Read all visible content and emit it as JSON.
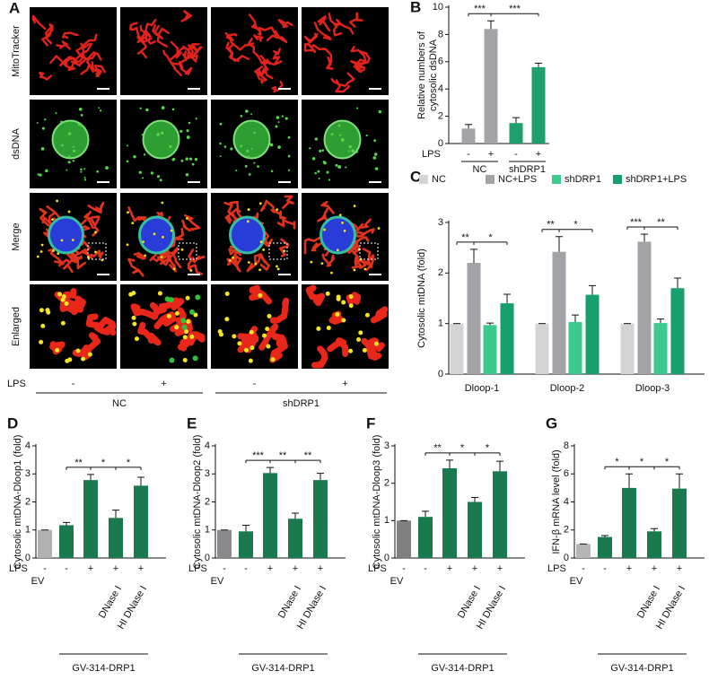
{
  "panel_a": {
    "panel": "A",
    "row_labels": [
      "MitoTracker",
      "dsDNA",
      "Merge",
      "Enlarged"
    ],
    "x_row_label": "LPS",
    "x_row": [
      "-",
      "+",
      "-",
      "+"
    ],
    "groups": [
      "NC",
      "shDRP1"
    ]
  },
  "chart_data": [
    {
      "type": "bar",
      "panel": "B",
      "y_label": [
        "Relative numbers of",
        "cytosolic dsDNA"
      ],
      "x_row_label": "LPS",
      "x_row": [
        "-",
        "+",
        "-",
        "+"
      ],
      "groups": [
        "NC",
        "shDRP1"
      ],
      "values": [
        1.1,
        8.4,
        1.5,
        5.6
      ],
      "errors": [
        0.3,
        0.6,
        0.4,
        0.3
      ],
      "colors": [
        "#a4a4a8",
        "#a4a4a8",
        "#1e9f6b",
        "#1e9f6b"
      ],
      "ylim": [
        0,
        10
      ],
      "yticks": [
        0,
        2,
        4,
        6,
        8,
        10
      ],
      "annotations": [
        "***",
        "***"
      ]
    },
    {
      "type": "grouped_bar",
      "panel": "C",
      "y_label": "Cytosolic mtDNA (fold)",
      "categories": [
        "Dloop-1",
        "Dloop-2",
        "Dloop-3"
      ],
      "series": [
        {
          "name": "NC",
          "color": "#d4d4d4",
          "values": [
            1,
            1,
            1
          ],
          "errors": [
            0,
            0,
            0
          ]
        },
        {
          "name": "NC+LPS",
          "color": "#a3a3a7",
          "values": [
            2.2,
            2.42,
            2.62
          ],
          "errors": [
            0.27,
            0.3,
            0.15
          ]
        },
        {
          "name": "shDRP1",
          "color": "#3ccb8c",
          "values": [
            0.97,
            1.03,
            1.01
          ],
          "errors": [
            0.04,
            0.14,
            0.08
          ]
        },
        {
          "name": "shDRP1+LPS",
          "color": "#17a06b",
          "values": [
            1.4,
            1.57,
            1.7
          ],
          "errors": [
            0.18,
            0.18,
            0.2
          ]
        }
      ],
      "ylim": [
        0,
        3
      ],
      "yticks": [
        0,
        1,
        2,
        3
      ],
      "annotations": [
        [
          "**",
          "*"
        ],
        [
          "**",
          "*"
        ],
        [
          "***",
          "**"
        ]
      ]
    },
    {
      "type": "bar",
      "panel": "D",
      "y_label": "Cytosolic mtDNA-Dloop1 (fold)",
      "x_row_label": "LPS",
      "x_row": [
        "-",
        "-",
        "+",
        "+",
        "+"
      ],
      "categories": [
        "EV",
        null,
        null,
        "DNase I",
        "HI DNase I"
      ],
      "group_label": "GV-314-DRP1",
      "values": [
        1,
        1.17,
        2.78,
        1.43,
        2.58
      ],
      "errors": [
        0,
        0.1,
        0.2,
        0.28,
        0.3
      ],
      "colors": [
        "#b0b0b3",
        "#1b7a4d",
        "#1b7a4d",
        "#1b7a4d",
        "#1b7a4d"
      ],
      "ylim": [
        0,
        4
      ],
      "yticks": [
        0,
        1,
        2,
        3,
        4
      ],
      "annotations": [
        "**",
        "*",
        "*"
      ]
    },
    {
      "type": "bar",
      "panel": "E",
      "y_label": "Cytosolic mtDNA-Dloop2 (fold)",
      "x_row_label": "LPS",
      "x_row": [
        "-",
        "-",
        "+",
        "+",
        "+"
      ],
      "categories": [
        "EV",
        null,
        null,
        "DNase I",
        "HI DNase I"
      ],
      "group_label": "GV-314-DRP1",
      "values": [
        1,
        0.95,
        3.03,
        1.4,
        2.78
      ],
      "errors": [
        0,
        0.22,
        0.2,
        0.2,
        0.24
      ],
      "colors": [
        "#8a8a8c",
        "#1b7a4d",
        "#1b7a4d",
        "#1b7a4d",
        "#1b7a4d"
      ],
      "ylim": [
        0,
        4
      ],
      "yticks": [
        0,
        1,
        2,
        3,
        4
      ],
      "annotations": [
        "***",
        "**",
        "**"
      ]
    },
    {
      "type": "bar",
      "panel": "F",
      "y_label": "Cytosolic mtDNA-Dloop3 (fold)",
      "x_row_label": "LPS",
      "x_row": [
        "-",
        "-",
        "+",
        "+",
        "+"
      ],
      "categories": [
        "EV",
        null,
        null,
        "DNase I",
        "HI DNase I"
      ],
      "group_label": "GV-314-DRP1",
      "values": [
        1,
        1.1,
        2.4,
        1.5,
        2.32
      ],
      "errors": [
        0,
        0.15,
        0.22,
        0.12,
        0.27
      ],
      "colors": [
        "#808081",
        "#1b7a4d",
        "#1b7a4d",
        "#1b7a4d",
        "#1b7a4d"
      ],
      "ylim": [
        0,
        3
      ],
      "yticks": [
        0,
        1,
        2,
        3
      ],
      "annotations": [
        "**",
        "*",
        "*"
      ]
    },
    {
      "type": "bar",
      "panel": "G",
      "y_label": "IFN-β mRNA level (fold)",
      "x_row_label": "LPS",
      "x_row": [
        "-",
        "-",
        "+",
        "+",
        "+"
      ],
      "categories": [
        "EV",
        null,
        null,
        "DNase I",
        "HI DNase I"
      ],
      "group_label": "GV-314-DRP1",
      "values": [
        1,
        1.5,
        5.0,
        1.9,
        4.95
      ],
      "errors": [
        0,
        0.1,
        1.0,
        0.2,
        1.05
      ],
      "colors": [
        "#b5b5b5",
        "#1b7a4d",
        "#1b7a4d",
        "#1b7a4d",
        "#1b7a4d"
      ],
      "ylim": [
        0,
        8
      ],
      "yticks": [
        0,
        2,
        4,
        6,
        8
      ],
      "annotations": [
        "*",
        "*",
        "*"
      ]
    }
  ]
}
